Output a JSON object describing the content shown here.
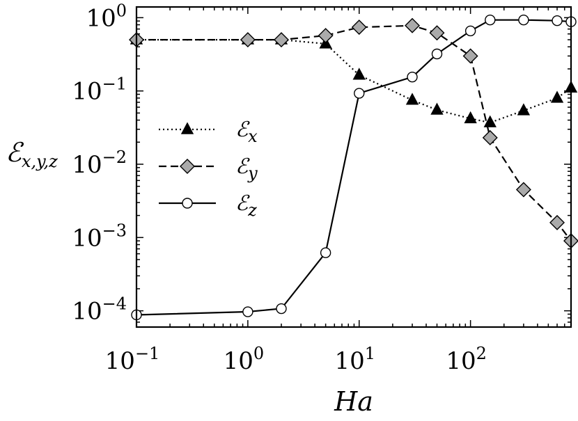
{
  "chart_data": {
    "type": "line",
    "xscale": "log",
    "yscale": "log",
    "xlabel": "Ha",
    "ylabel": "ℰx,y,z",
    "xlim": [
      0.1,
      800
    ],
    "ylim": [
      6e-05,
      1.4
    ],
    "x_ticks": [
      {
        "value": 0.1,
        "base": "10",
        "exp": "−1"
      },
      {
        "value": 1,
        "base": "10",
        "exp": "0"
      },
      {
        "value": 10,
        "base": "10",
        "exp": "1"
      },
      {
        "value": 100,
        "base": "10",
        "exp": "2"
      }
    ],
    "y_ticks": [
      {
        "value": 0.0001,
        "base": "10",
        "exp": "−4"
      },
      {
        "value": 0.001,
        "base": "10",
        "exp": "−3"
      },
      {
        "value": 0.01,
        "base": "10",
        "exp": "−2"
      },
      {
        "value": 0.1,
        "base": "10",
        "exp": "−1"
      },
      {
        "value": 1,
        "base": "10",
        "exp": "0"
      }
    ],
    "grid": false,
    "legend": "left-middle",
    "series": [
      {
        "name": "ℰx",
        "name_base": "ℰ",
        "name_sub": "x",
        "linestyle": "dotted",
        "marker": "triangle",
        "marker_color": "#000000",
        "x": [
          0.1,
          1,
          2,
          5,
          10,
          30,
          50,
          100,
          150,
          300,
          600,
          800
        ],
        "y": [
          0.5,
          0.5,
          0.5,
          0.44,
          0.165,
          0.075,
          0.055,
          0.042,
          0.037,
          0.054,
          0.08,
          0.11
        ]
      },
      {
        "name": "ℰy",
        "name_base": "ℰ",
        "name_sub": "y",
        "linestyle": "dashed",
        "marker": "diamond",
        "marker_color": "#aaaaaa",
        "x": [
          0.1,
          1,
          2,
          5,
          10,
          30,
          50,
          100,
          150,
          300,
          600,
          800
        ],
        "y": [
          0.5,
          0.5,
          0.5,
          0.57,
          0.74,
          0.78,
          0.62,
          0.3,
          0.023,
          0.0045,
          0.0016,
          0.0009
        ]
      },
      {
        "name": "ℰz",
        "name_base": "ℰ",
        "name_sub": "z",
        "linestyle": "solid",
        "marker": "circle",
        "marker_color": "#ffffff",
        "x": [
          0.1,
          1,
          2,
          5,
          10,
          30,
          50,
          100,
          150,
          300,
          600,
          800
        ],
        "y": [
          8.8e-05,
          9.7e-05,
          0.000107,
          0.00062,
          0.093,
          0.155,
          0.32,
          0.66,
          0.93,
          0.93,
          0.91,
          0.88
        ]
      }
    ]
  }
}
